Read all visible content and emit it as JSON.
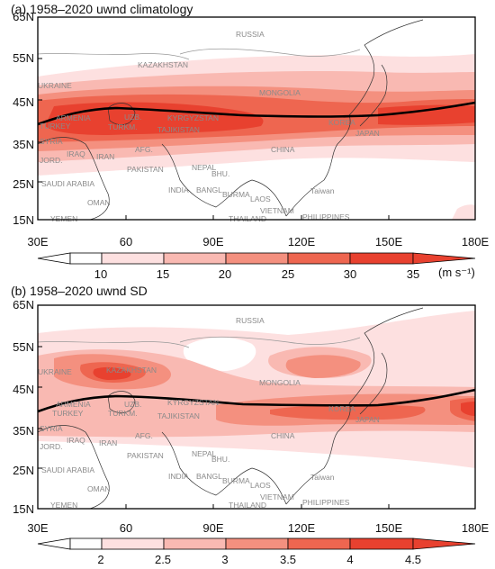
{
  "panels": [
    {
      "title": "(a) 1958–2020 uwnd climatology",
      "lat_labels": [
        "65N",
        "55N",
        "45N",
        "35N",
        "25N",
        "15N"
      ],
      "lon_labels": [
        "30E",
        "60",
        "90E",
        "120E",
        "150E",
        "180E"
      ],
      "colorbar_labels": [
        "10",
        "15",
        "20",
        "25",
        "30",
        "35"
      ],
      "unit_label": "(m s⁻¹)"
    },
    {
      "title": "(b) 1958–2020 uwnd  SD",
      "lat_labels": [
        "65N",
        "55N",
        "45N",
        "35N",
        "25N",
        "15N"
      ],
      "lon_labels": [
        "30E",
        "60",
        "90E",
        "120E",
        "150E",
        "180E"
      ],
      "colorbar_labels": [
        "2",
        "2.5",
        "3",
        "3.5",
        "4",
        "4.5"
      ],
      "unit_label": ""
    }
  ],
  "map_labels": [
    "RUSSIA",
    "UKRAINE",
    "KAZAKHSTAN",
    "MONGOLIA",
    "TURKEY",
    "SYRIA",
    "IRAQ",
    "JORD.",
    "IRAN",
    "AFG.",
    "PAKISTAN",
    "NEPAL",
    "BHU.",
    "CHINA",
    "INDIA",
    "BANGL.",
    "BURMA",
    "SAUDI ARABIA",
    "OMAN",
    "YEMEN",
    "LAOS",
    "VIETNAM",
    "THAILAND",
    "PHILIPPINES",
    "Taiwan",
    "KOREA",
    "JAPAN",
    "KYRGYZSTAN",
    "UZB.",
    "TURKM.",
    "TAJIKISTAN",
    "ARMENIA"
  ],
  "colors": {
    "level1": "#fde0e0",
    "level2": "#f9b9b2",
    "level3": "#f4907f",
    "level4": "#ee6650",
    "level5": "#e8412f",
    "line": "#000000"
  }
}
